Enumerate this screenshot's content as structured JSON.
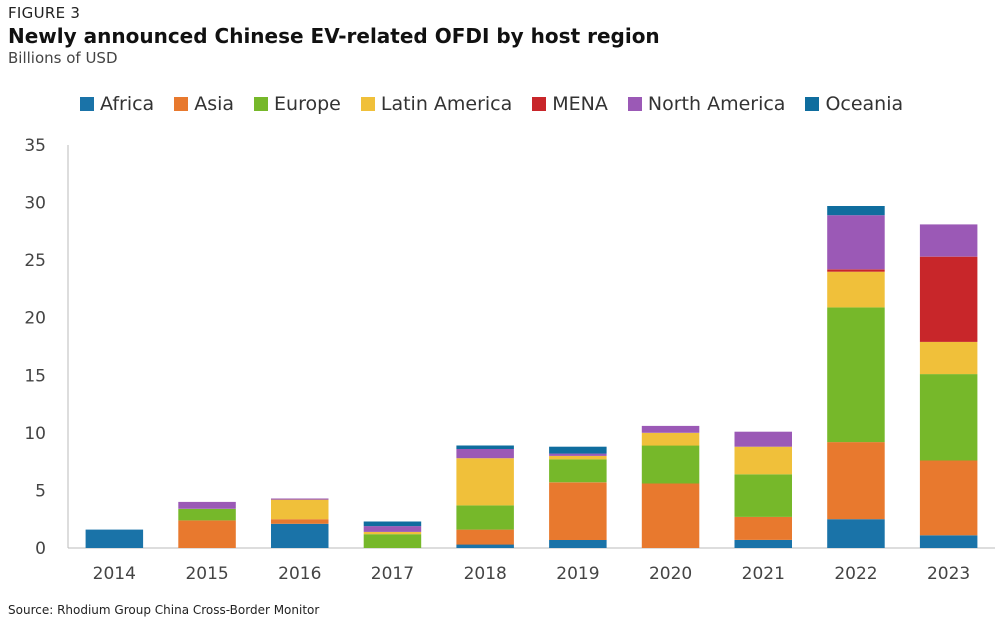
{
  "figure_label": "FIGURE 3",
  "source": "Source: Rhodium Group China Cross-Border Monitor",
  "chart_data": {
    "type": "bar",
    "stacked": true,
    "title": "Newly announced Chinese EV-related OFDI by host region",
    "subtitle": "Billions of USD",
    "xlabel": "",
    "ylabel": "",
    "ylim": [
      0,
      35
    ],
    "yticks": [
      "0",
      "5",
      "10",
      "15",
      "20",
      "25",
      "30",
      "35"
    ],
    "grid": false,
    "legend_position": "top",
    "categories": [
      "2014",
      "2015",
      "2016",
      "2017",
      "2018",
      "2019",
      "2020",
      "2021",
      "2022",
      "2023"
    ],
    "series": [
      {
        "name": "Africa",
        "color": "#1a73a8",
        "values": [
          1.6,
          0,
          2.1,
          0,
          0.3,
          0.7,
          0,
          0.7,
          2.5,
          1.1
        ]
      },
      {
        "name": "Asia",
        "color": "#e8792e",
        "values": [
          0,
          2.4,
          0.4,
          0,
          1.3,
          5.0,
          5.6,
          2.0,
          6.7,
          6.5
        ]
      },
      {
        "name": "Europe",
        "color": "#76b82a",
        "values": [
          0,
          1.0,
          0,
          1.2,
          2.1,
          2.0,
          3.3,
          3.7,
          11.7,
          7.5
        ]
      },
      {
        "name": "Latin America",
        "color": "#f0c03a",
        "values": [
          0,
          0,
          1.7,
          0.2,
          4.1,
          0.3,
          1.1,
          2.4,
          3.1,
          2.8
        ]
      },
      {
        "name": "MENA",
        "color": "#c8262a",
        "values": [
          0,
          0,
          0,
          0,
          0,
          0,
          0,
          0,
          0.2,
          7.4
        ]
      },
      {
        "name": "North America",
        "color": "#9b59b6",
        "values": [
          0,
          0.6,
          0.1,
          0.5,
          0.8,
          0.2,
          0.6,
          1.3,
          4.7,
          2.8
        ]
      },
      {
        "name": "Oceania",
        "color": "#0f6d9e",
        "values": [
          0,
          0,
          0,
          0.4,
          0.3,
          0.6,
          0,
          0,
          0.8,
          0
        ]
      }
    ]
  }
}
